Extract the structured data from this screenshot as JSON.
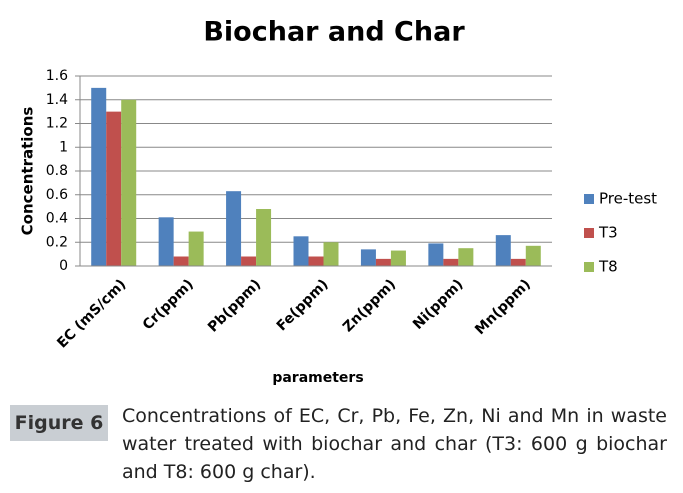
{
  "chart_data": {
    "type": "bar",
    "title": "Biochar and Char",
    "y_label": "Concentrations",
    "x_label": "parameters",
    "categories": [
      "EC (mS/cm)",
      "Cr(ppm)",
      "Pb(ppm)",
      "Fe(ppm)",
      "Zn(ppm)",
      "Ni(ppm)",
      "Mn(ppm)"
    ],
    "series": [
      {
        "name": "Pre-test",
        "color": "#4f81bd",
        "values": [
          1.5,
          0.41,
          0.63,
          0.25,
          0.14,
          0.19,
          0.26
        ]
      },
      {
        "name": "T3",
        "color": "#c0504d",
        "values": [
          1.3,
          0.08,
          0.08,
          0.08,
          0.06,
          0.06,
          0.06
        ]
      },
      {
        "name": "T8",
        "color": "#9bbb59",
        "values": [
          1.4,
          0.29,
          0.48,
          0.2,
          0.13,
          0.15,
          0.17
        ]
      }
    ],
    "ylim": [
      0,
      1.6
    ],
    "yticks": [
      0,
      0.2,
      0.4,
      0.6,
      0.8,
      1,
      1.2,
      1.4,
      1.6
    ],
    "grid": true,
    "legend": "right"
  },
  "figure": {
    "label": "Figure 6",
    "caption": "Concentrations of EC, Cr, Pb, Fe, Zn, Ni and Mn in waste water treated with biochar and char (T3: 600 g biochar and T8: 600 g char)."
  }
}
